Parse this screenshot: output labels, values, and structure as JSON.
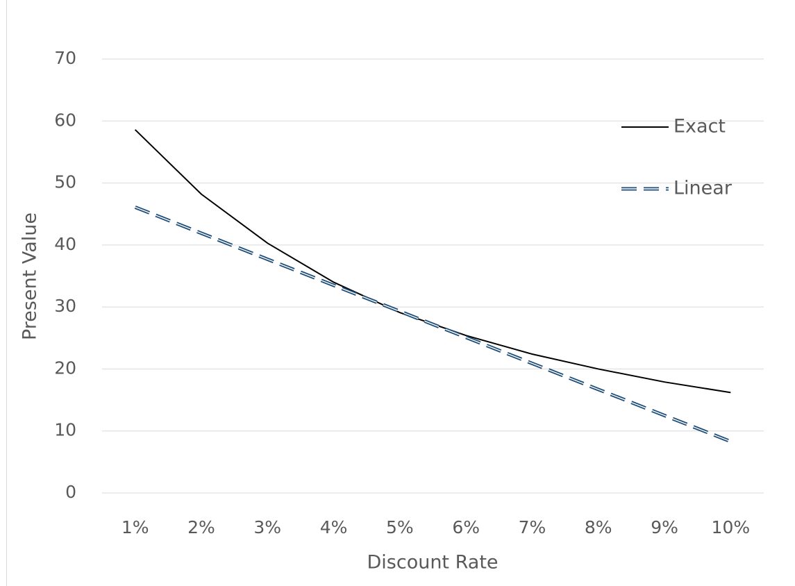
{
  "chart_data": {
    "type": "line",
    "x_label": "Discount Rate",
    "y_label": "Present Value",
    "categories": [
      "1%",
      "2%",
      "3%",
      "4%",
      "5%",
      "6%",
      "7%",
      "8%",
      "9%",
      "10%"
    ],
    "series": [
      {
        "name": "Exact",
        "color": "#000000",
        "style": "solid",
        "values": [
          58.6,
          48.2,
          40.3,
          34.0,
          29.1,
          25.4,
          22.4,
          20.0,
          17.9,
          16.2
        ]
      },
      {
        "name": "Linear",
        "color": "#1f4e79",
        "style": "double-dash",
        "values": [
          46.1,
          41.9,
          37.7,
          33.5,
          29.3,
          25.1,
          20.9,
          16.7,
          12.5,
          8.3
        ]
      }
    ],
    "ylim": [
      0,
      70
    ],
    "yticks": [
      0,
      10,
      20,
      30,
      40,
      50,
      60,
      70
    ],
    "grid": true,
    "legend": "top-right"
  }
}
